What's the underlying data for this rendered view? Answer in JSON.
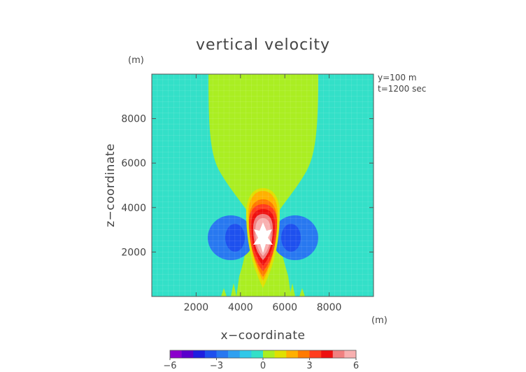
{
  "chart_data": {
    "type": "heatmap",
    "title": "vertical velocity",
    "xlabel": "x−coordinate",
    "ylabel": "z−coordinate",
    "x_unit": "(m)",
    "z_unit": "(m)",
    "annotations": [
      "y=100 m",
      "t=1200 sec"
    ],
    "xlim": [
      0,
      10000
    ],
    "ylim": [
      0,
      10000
    ],
    "x_ticks": [
      2000,
      4000,
      6000,
      8000
    ],
    "x_tick_labels": [
      "2000",
      "4000",
      "6000",
      "8000"
    ],
    "y_ticks": [
      2000,
      4000,
      6000,
      8000
    ],
    "y_tick_labels": [
      "2000",
      "4000",
      "6000",
      "8000"
    ],
    "colorbar": {
      "levels": [
        -6,
        -5.25,
        -4.5,
        -3.75,
        -3,
        -2.25,
        -1.5,
        -0.75,
        0,
        0.75,
        1.5,
        2.25,
        3,
        3.75,
        4.5,
        5.25,
        6
      ],
      "colors": [
        "#8b00cc",
        "#5a00cc",
        "#1f1fe0",
        "#1e50ee",
        "#2878f0",
        "#30a0f0",
        "#2fc8e8",
        "#33e0c8",
        "#aaee22",
        "#e0e000",
        "#ffb000",
        "#ff7a00",
        "#ff3c1e",
        "#ee1010",
        "#f08080",
        "#f8b0b0"
      ],
      "tick_values": [
        -6,
        -3,
        0,
        3,
        6
      ],
      "tick_labels": [
        "−6",
        "−3",
        "0",
        "3",
        "6"
      ]
    },
    "background_level": "0 to 0.75 (cyan)",
    "features": [
      {
        "name": "updraft plume",
        "level_range": [
          0.75,
          1.5
        ],
        "x_range": [
          2500,
          7500
        ],
        "z_range": [
          300,
          10000
        ]
      },
      {
        "name": "updraft core",
        "center": [
          5000,
          2800
        ],
        "max_level": ">6"
      },
      {
        "name": "left downdraft",
        "center": [
          3300,
          2700
        ],
        "min_level": "-3"
      },
      {
        "name": "right downdraft",
        "center": [
          6700,
          2700
        ],
        "min_level": "-3"
      }
    ]
  }
}
